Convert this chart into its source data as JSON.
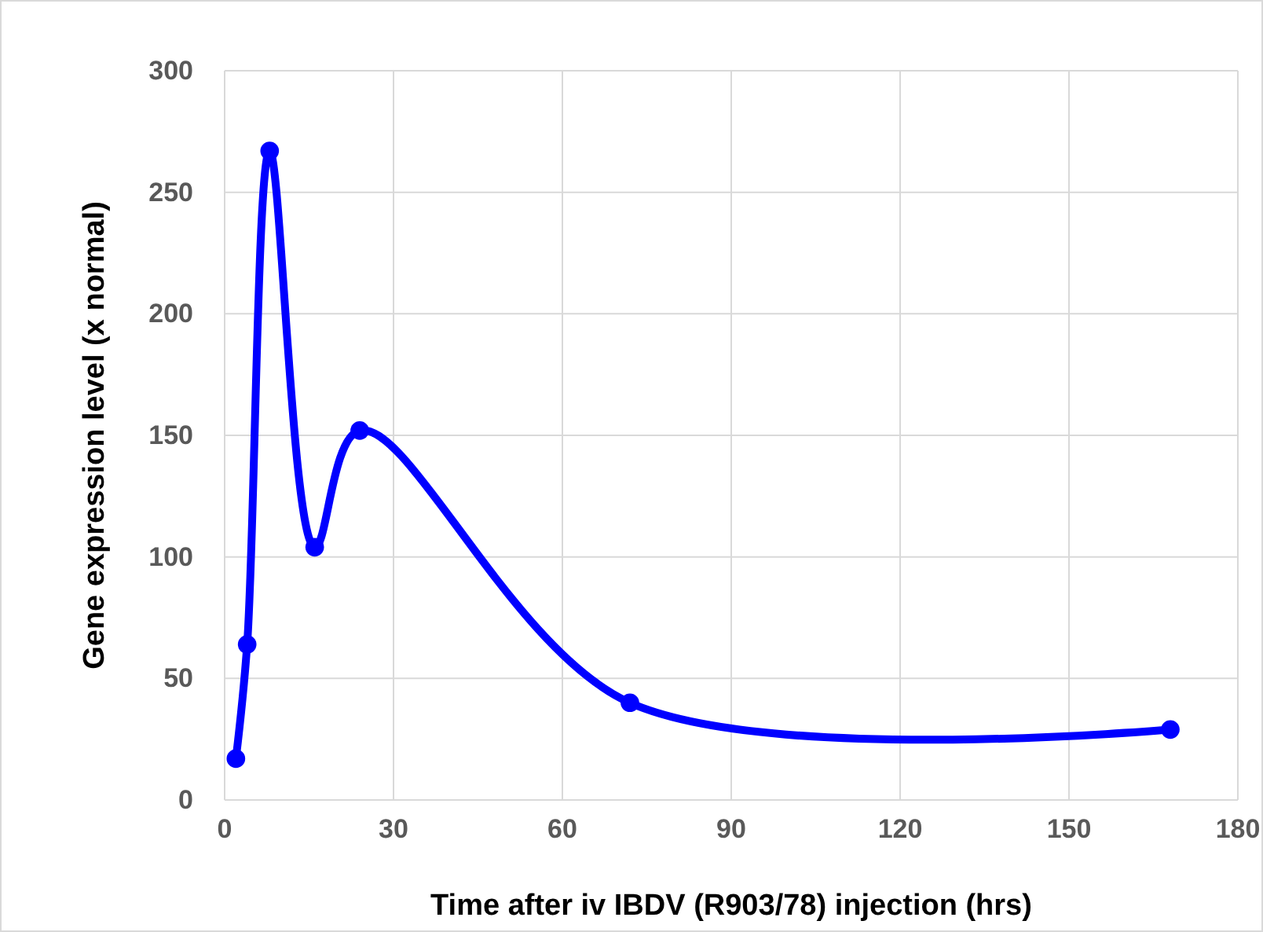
{
  "chart_data": {
    "type": "line",
    "xlabel": "Time after iv IBDV (R903/78) injection (hrs)",
    "ylabel": "Gene expression level (x normal)",
    "x": [
      2,
      4,
      8,
      16,
      24,
      72,
      168
    ],
    "series": [
      {
        "color": "#0000ff",
        "values": [
          17,
          64,
          267,
          104,
          152,
          40,
          29
        ]
      }
    ],
    "xlim": [
      0,
      180
    ],
    "xticks": [
      0,
      30,
      60,
      90,
      120,
      150,
      180
    ],
    "ylim": [
      0,
      300
    ],
    "yticks": [
      0,
      50,
      100,
      150,
      200,
      250,
      300
    ],
    "grid": true,
    "marker": "circle",
    "line_style": "solid"
  }
}
